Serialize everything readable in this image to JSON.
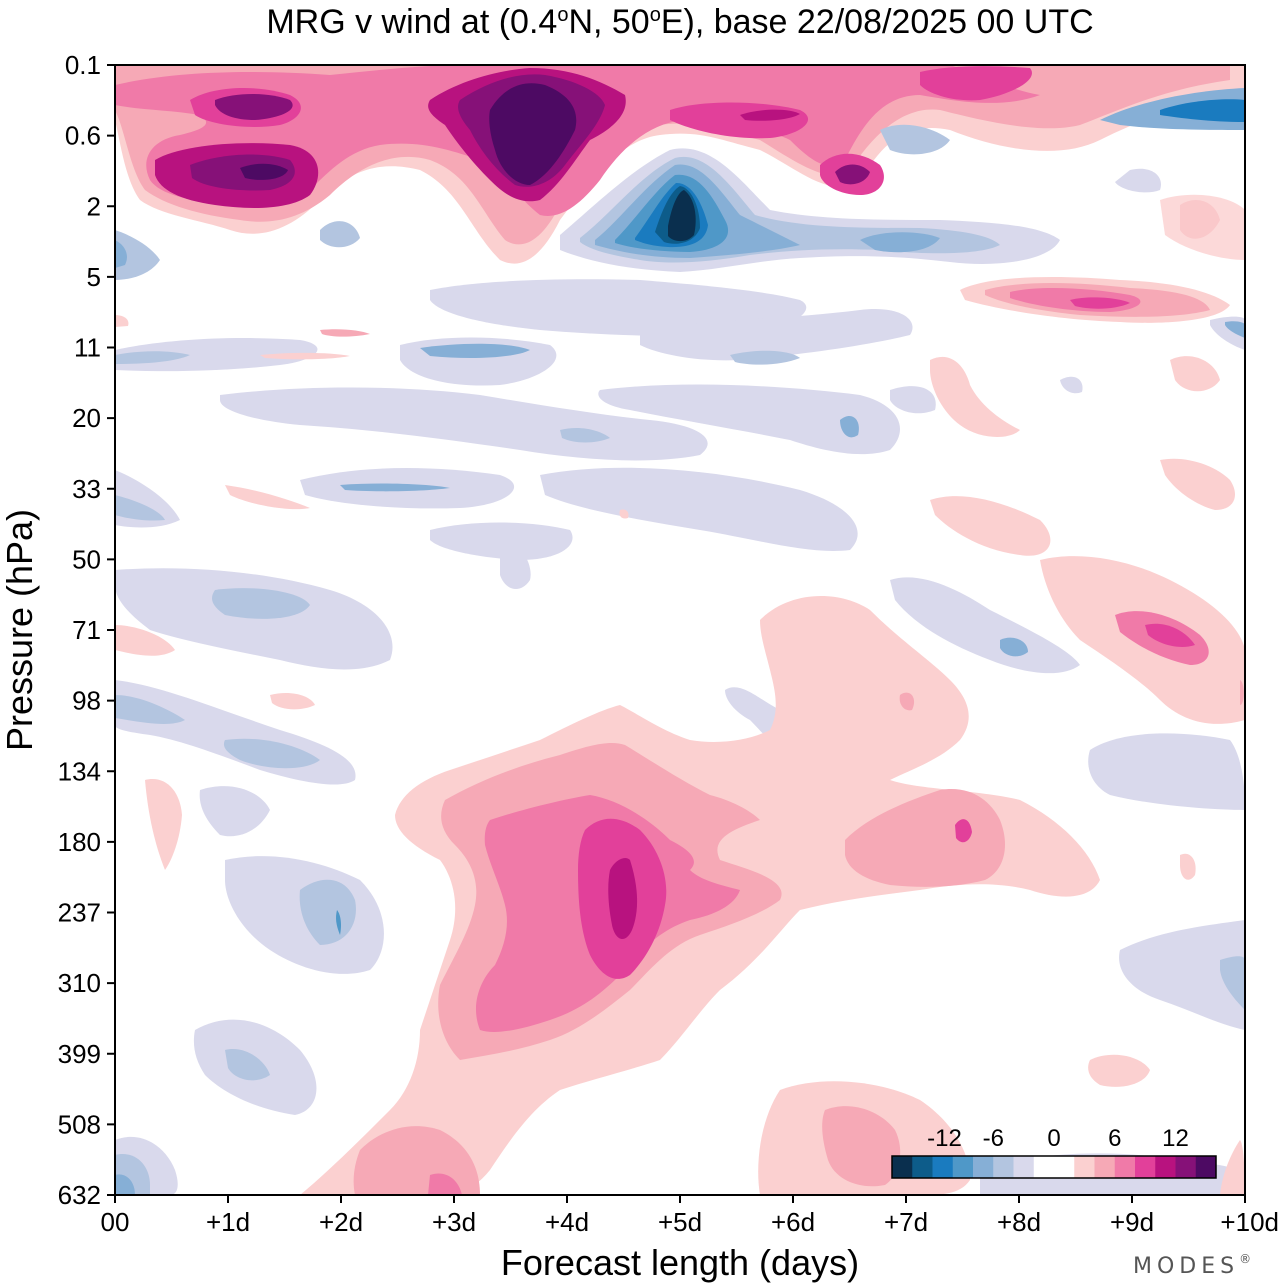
{
  "chart_data": {
    "type": "heatmap",
    "title": "MRG v wind at (0.4°N, 50°E),  base 22/08/2025  00 UTC",
    "title_parts": {
      "a": "MRG v wind at (0.4",
      "deg": "o",
      "b": "N, 50",
      "c": "E),  base 22/08/2025  00 UTC"
    },
    "xlabel": "Forecast length (days)",
    "ylabel": "Pressure (hPa)",
    "x_ticks": [
      "00",
      "+1d",
      "+2d",
      "+3d",
      "+4d",
      "+5d",
      "+6d",
      "+7d",
      "+8d",
      "+9d",
      "+10d"
    ],
    "y_ticks": [
      "0.1",
      "0.6",
      "2",
      "5",
      "11",
      "20",
      "33",
      "50",
      "71",
      "98",
      "134",
      "180",
      "237",
      "310",
      "399",
      "508",
      "632"
    ],
    "xlim": [
      0,
      10
    ],
    "ylim_hPa": [
      0.1,
      632
    ],
    "colorbar": {
      "labels": [
        "-12",
        "-6",
        "0",
        "6",
        "12"
      ],
      "colors": [
        "#0a2f4e",
        "#0d5c8a",
        "#1a7bbf",
        "#4f98c8",
        "#86afd6",
        "#b3c5e0",
        "#d9d9ec",
        "#ffffff",
        "#ffffff",
        "#fbd0d0",
        "#f6a9b6",
        "#f07aa8",
        "#e2409a",
        "#b8127f",
        "#861178",
        "#4d0a63"
      ]
    },
    "features": [
      {
        "name": "upper-purple-max-1",
        "x_day": 1.5,
        "p_hPa": 0.3,
        "value": 12
      },
      {
        "name": "upper-purple-max-2",
        "x_day": 1.3,
        "p_hPa": 1.2,
        "value": 14
      },
      {
        "name": "upper-purple-max-3",
        "x_day": 3.8,
        "p_hPa": 0.6,
        "value": 16
      },
      {
        "name": "blue-min",
        "x_day": 5.0,
        "p_hPa": 2.5,
        "value": -14
      },
      {
        "name": "pink-max-9d",
        "x_day": 9.0,
        "p_hPa": 7,
        "value": 8
      },
      {
        "name": "lower-pink-max",
        "x_day": 4.5,
        "p_hPa": 230,
        "value": 12
      },
      {
        "name": "pink-max-7d",
        "x_day": 7.5,
        "p_hPa": 180,
        "value": 6
      }
    ]
  },
  "brand": "MODES",
  "brand_mark": "®"
}
